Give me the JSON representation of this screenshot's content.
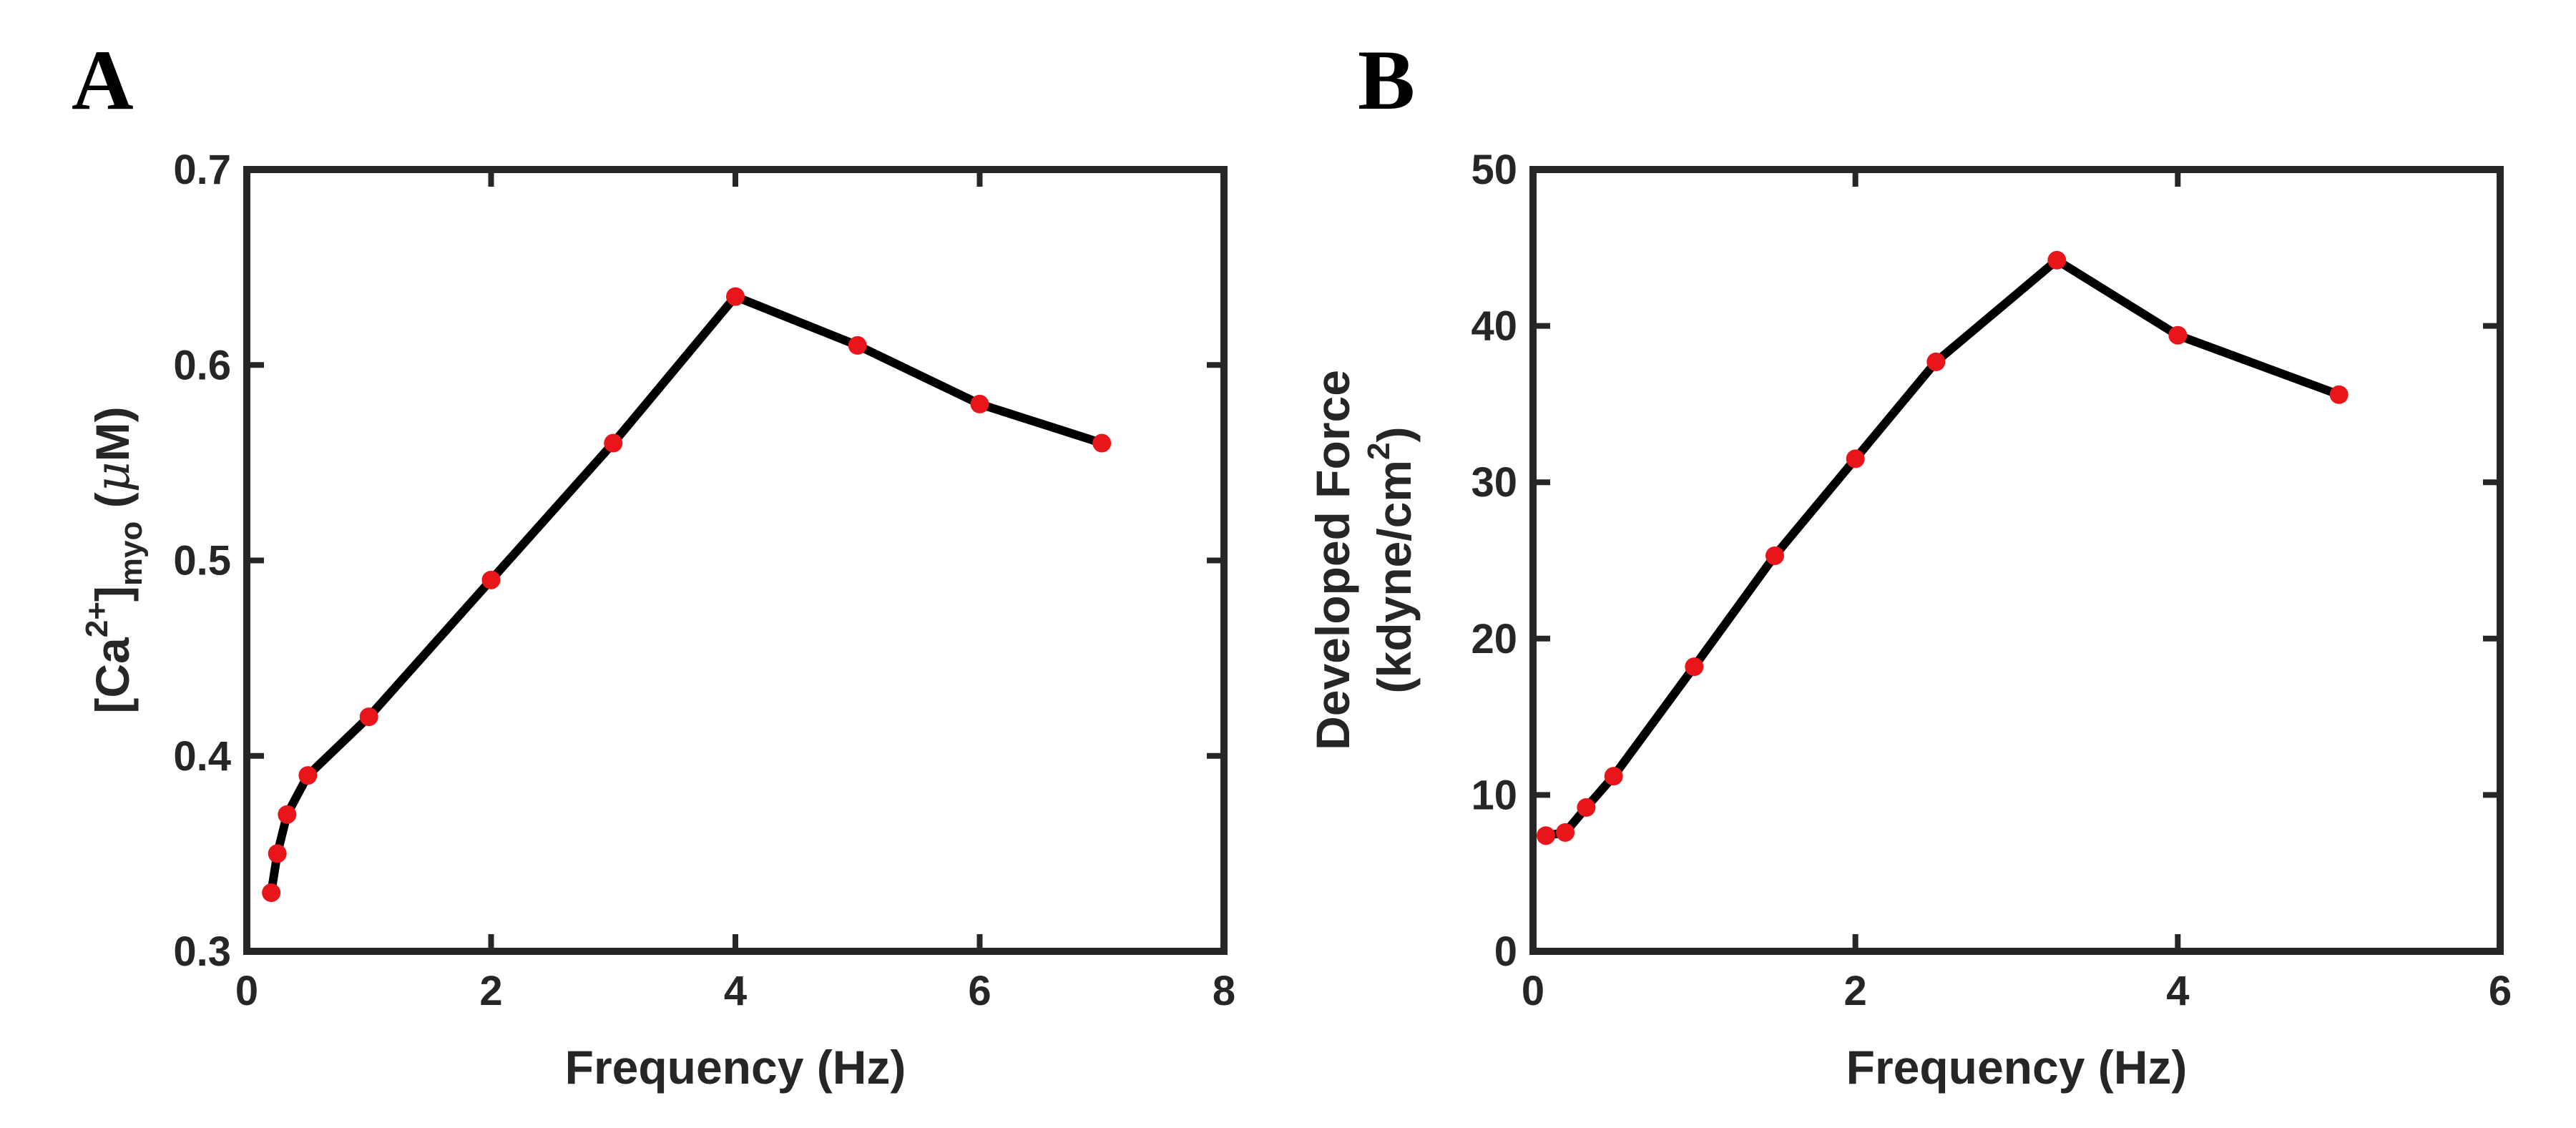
{
  "chart_data": [
    {
      "type": "line",
      "panel_label": "A",
      "x": [
        0.2,
        0.25,
        0.33,
        0.5,
        1,
        2,
        3,
        4,
        5,
        6,
        7
      ],
      "series": [
        {
          "name": "Ca2+ myo",
          "values": [
            0.33,
            0.35,
            0.37,
            0.39,
            0.42,
            0.49,
            0.56,
            0.635,
            0.61,
            0.58,
            0.56
          ]
        }
      ],
      "xlabel": "Frequency (Hz)",
      "ylabel_parts": {
        "open": "[Ca",
        "sup": "2+",
        "close": "]",
        "sub": "myo",
        "unit_open": " (",
        "mu": "μ",
        "unit_close": "M)"
      },
      "xlim": [
        0,
        8
      ],
      "ylim": [
        0.3,
        0.7
      ],
      "xticks": [
        0,
        2,
        4,
        6,
        8
      ],
      "yticks": [
        0.3,
        0.4,
        0.5,
        0.6,
        0.7
      ],
      "xtick_labels": [
        "0",
        "2",
        "4",
        "6",
        "8"
      ],
      "ytick_labels": [
        "0.3",
        "0.4",
        "0.5",
        "0.6",
        "0.7"
      ],
      "grid": false,
      "line_color": "#000000",
      "marker_color": "#e8161b"
    },
    {
      "type": "line",
      "panel_label": "B",
      "x": [
        0.08,
        0.2,
        0.33,
        0.5,
        1,
        1.5,
        2,
        2.5,
        3.25,
        4,
        5
      ],
      "series": [
        {
          "name": "Developed Force",
          "values": [
            7.4,
            7.6,
            9.2,
            11.2,
            18.2,
            25.3,
            31.5,
            37.7,
            44.2,
            39.4,
            35.6
          ]
        }
      ],
      "xlabel": "Frequency (Hz)",
      "ylabel_line1": "Developed Force",
      "ylabel_line2_parts": {
        "open": "(kdyne/cm",
        "sup": "2",
        "close": ")"
      },
      "xlim": [
        0,
        6
      ],
      "ylim": [
        0,
        50
      ],
      "xticks": [
        0,
        2,
        4,
        6
      ],
      "yticks": [
        0,
        10,
        20,
        30,
        40,
        50
      ],
      "xtick_labels": [
        "0",
        "2",
        "4",
        "6"
      ],
      "ytick_labels": [
        "0",
        "10",
        "20",
        "30",
        "40",
        "50"
      ],
      "grid": false,
      "line_color": "#000000",
      "marker_color": "#e8161b"
    }
  ]
}
